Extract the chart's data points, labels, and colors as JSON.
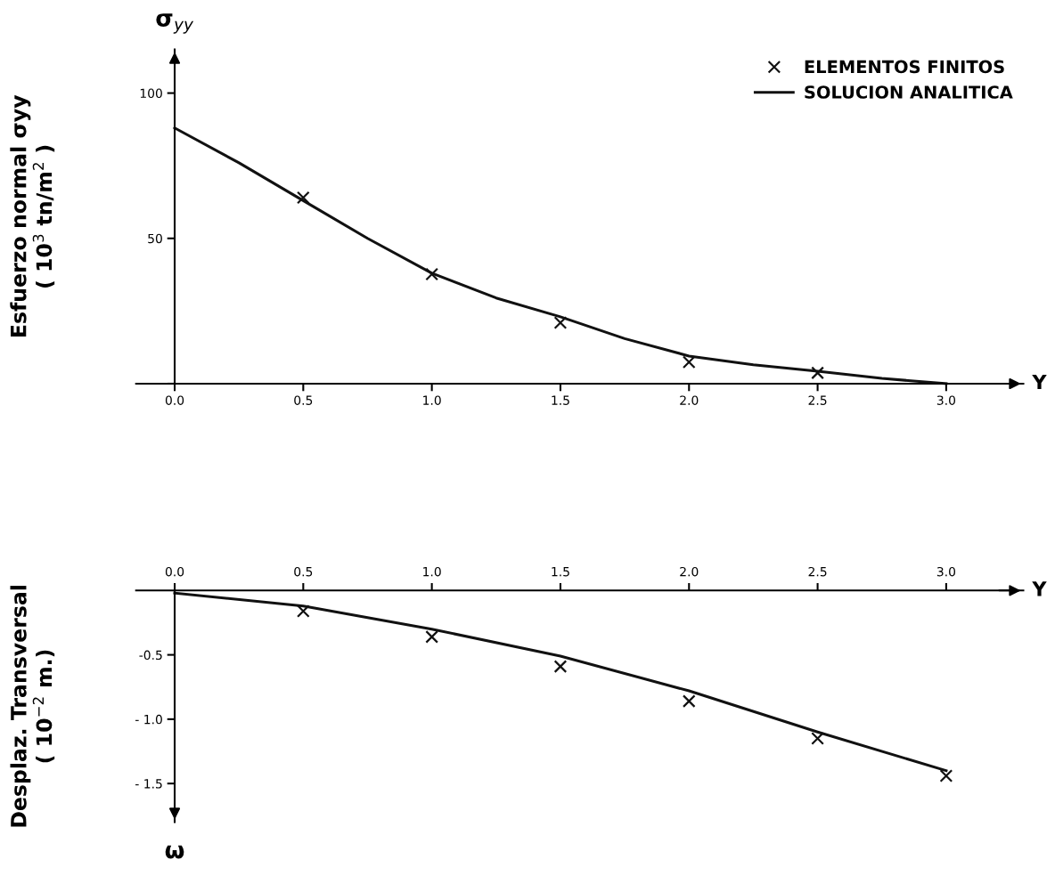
{
  "chart_data": [
    {
      "type": "line",
      "xlabel": "Y",
      "ylabel": "Esfuerzo normal σyy\n( 10$^{3}$ tn/m$^{2}$ )",
      "annotations": [
        "σ$_{yy}$"
      ],
      "xlim": [
        -0.15,
        3.3
      ],
      "ylim": [
        0,
        115
      ],
      "xticks": [
        {
          "value": 0,
          "label": "0.0"
        },
        0.5,
        {
          "value": 1,
          "label": "1.0"
        },
        1.5,
        {
          "value": 2,
          "label": "2.0"
        },
        2.5,
        {
          "value": 3,
          "label": "3.0"
        }
      ],
      "yticks": [
        {
          "value": 0,
          "label": null
        },
        50,
        100
      ],
      "grid": false,
      "legend": "top right",
      "series": [
        {
          "name": "ELEMENTOS FINITOS",
          "type": "scatter",
          "marker": "cross",
          "color": "#111111",
          "x": [
            0.5,
            1.0,
            1.5,
            2.0,
            2.5
          ],
          "values": [
            64,
            37.7,
            21,
            7.4,
            3.7
          ]
        },
        {
          "name": "SOLUCION ANALITICA",
          "color": "#111111",
          "x": [
            0,
            0.25,
            0.5,
            0.75,
            1.0,
            1.25,
            1.5,
            1.75,
            2.0,
            2.25,
            2.5,
            2.75,
            3.0
          ],
          "values": [
            88,
            76,
            63,
            50,
            38,
            29.5,
            23,
            15.5,
            9.5,
            6.5,
            4.3,
            1.8,
            0
          ]
        }
      ]
    },
    {
      "type": "line",
      "xlabel": "Y",
      "ylabel": "Desplaz. Transversal\n( 10$^{−2}$ m.)",
      "annotations": [
        "ω"
      ],
      "xlim": [
        -0.15,
        3.3
      ],
      "ylim": [
        -1.8,
        0
      ],
      "xticks": [
        {
          "value": 0,
          "label": "0.0"
        },
        0.5,
        {
          "value": 1,
          "label": "1.0"
        },
        1.5,
        {
          "value": 2,
          "label": "2.0"
        },
        2.5,
        {
          "value": 3,
          "label": "3.0"
        }
      ],
      "yticks": [
        {
          "value": -0.5,
          "label": "-0.5"
        },
        {
          "value": -1.0,
          "label": "- 1.0"
        },
        {
          "value": -1.5,
          "label": "- 1.5"
        }
      ],
      "grid": false,
      "series": [
        {
          "type": "scatter",
          "marker": "cross",
          "color": "#111111",
          "x": [
            0.5,
            1.0,
            1.5,
            2.0,
            2.5,
            3.0
          ],
          "values": [
            -0.16,
            -0.36,
            -0.59,
            -0.86,
            -1.15,
            -1.44
          ]
        },
        {
          "color": "#111111",
          "x": [
            0,
            0.5,
            1.0,
            1.5,
            2.0,
            2.5,
            3.0
          ],
          "values": [
            -0.02,
            -0.12,
            -0.3,
            -0.51,
            -0.78,
            -1.1,
            -1.4
          ]
        }
      ]
    }
  ]
}
